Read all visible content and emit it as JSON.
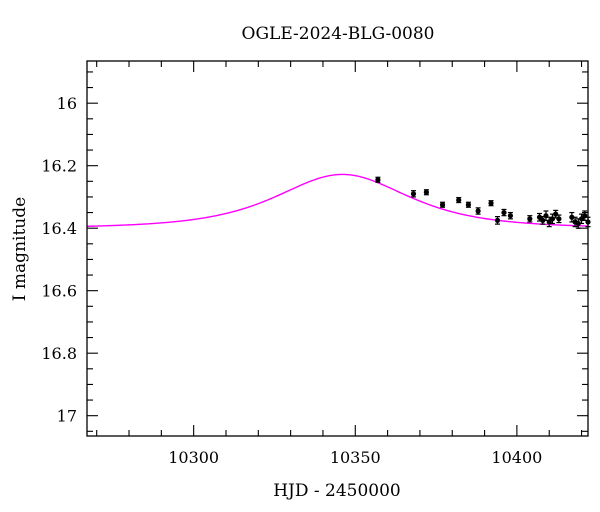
{
  "chart_data": {
    "type": "scatter",
    "title": "OGLE-2024-BLG-0080",
    "xlabel": "HJD - 2450000",
    "ylabel": "I magnitude",
    "xlim": [
      10267,
      10422
    ],
    "ylim": [
      17.065,
      15.865
    ],
    "y_inverted": true,
    "grid": false,
    "x_ticks": [
      10300,
      10350,
      10400
    ],
    "x_tick_labels": [
      "10300",
      "10350",
      "10400"
    ],
    "y_ticks": [
      16,
      16.2,
      16.4,
      16.6,
      16.8,
      17
    ],
    "y_tick_labels": [
      "16",
      "16.2",
      "16.4",
      "16.6",
      "16.8",
      "17"
    ],
    "colors": {
      "model": "#ff00ff",
      "points": "#000000",
      "axes": "#000000"
    },
    "model": {
      "name": "",
      "baseline_mag": 16.4,
      "peak_mag": 16.228,
      "t0": 10346,
      "tE": 18,
      "u0": 1.65
    },
    "series": [
      {
        "name": "",
        "x": [
          10357,
          10368,
          10372,
          10377,
          10382,
          10385,
          10388,
          10392,
          10394,
          10396,
          10398,
          10404,
          10407,
          10408,
          10409,
          10410,
          10411,
          10412,
          10413,
          10417,
          10418,
          10419,
          10420,
          10421,
          10422
        ],
        "y": [
          16.245,
          16.29,
          16.285,
          16.325,
          16.31,
          16.325,
          16.345,
          16.32,
          16.375,
          16.35,
          16.36,
          16.37,
          16.365,
          16.375,
          16.36,
          16.38,
          16.37,
          16.355,
          16.37,
          16.365,
          16.38,
          16.385,
          16.37,
          16.36,
          16.38
        ],
        "yerr": [
          0.008,
          0.01,
          0.008,
          0.008,
          0.008,
          0.008,
          0.01,
          0.008,
          0.012,
          0.01,
          0.01,
          0.01,
          0.012,
          0.012,
          0.015,
          0.015,
          0.015,
          0.012,
          0.012,
          0.015,
          0.015,
          0.015,
          0.015,
          0.015,
          0.015
        ]
      }
    ]
  }
}
